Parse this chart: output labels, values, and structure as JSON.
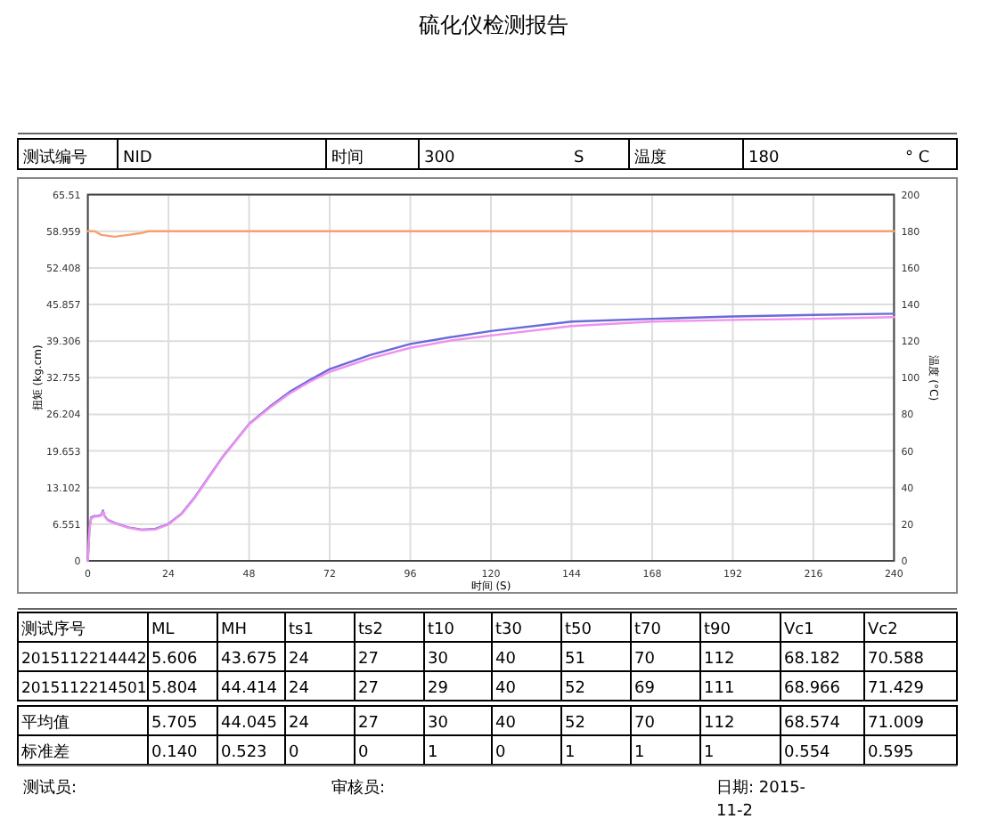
{
  "chart_data": [
    {
      "type": "other",
      "title": "硫化仪检测报告",
      "annotations": [
        "测试编号",
        "NID",
        "时间",
        "300",
        "S",
        "温度",
        "180",
        "° C"
      ]
    },
    {
      "type": "line",
      "xlabel": "时间 (S)",
      "ylabel": "扭矩 (kg.cm)",
      "y2label": "温度 (°C)",
      "xlim": [
        0,
        240
      ],
      "xticks": [
        0,
        24,
        48,
        72,
        96,
        120,
        144,
        168,
        192,
        216,
        240
      ],
      "ylim": [
        0,
        65.51
      ],
      "yticks": [
        0,
        6.551,
        13.102,
        19.653,
        26.204,
        32.755,
        39.306,
        45.857,
        52.408,
        58.959,
        65.51
      ],
      "y2lim": [
        0,
        200
      ],
      "y2ticks": [
        0,
        20,
        40,
        60,
        80,
        100,
        120,
        140,
        160,
        180,
        200
      ],
      "grid": true,
      "marker": "none",
      "line_style": "solid",
      "series": [
        {
          "color": "#6a6ad8",
          "x": [
            0,
            0.5,
            1,
            2,
            3,
            4,
            4.5,
            5,
            6,
            8,
            12,
            16,
            20,
            24,
            28,
            32,
            36,
            40,
            44,
            48,
            54,
            60,
            66,
            72,
            84,
            96,
            108,
            120,
            144,
            168,
            192,
            216,
            240
          ],
          "values": [
            0,
            6,
            7.8,
            8,
            8,
            8.2,
            9,
            8,
            7.3,
            6.8,
            6,
            5.6,
            5.7,
            6.6,
            8.5,
            11.5,
            15,
            18.5,
            21.5,
            24.5,
            27.5,
            30.2,
            32.3,
            34.3,
            36.8,
            38.8,
            40,
            41.1,
            42.8,
            43.3,
            43.7,
            44,
            44.2
          ]
        },
        {
          "color": "#f090f0",
          "x": [
            0,
            0.5,
            1,
            2,
            3,
            4,
            4.5,
            5,
            6,
            8,
            12,
            16,
            20,
            24,
            28,
            32,
            36,
            40,
            44,
            48,
            54,
            60,
            66,
            72,
            84,
            96,
            108,
            120,
            144,
            168,
            192,
            216,
            240
          ],
          "values": [
            0,
            5.8,
            7.6,
            7.9,
            7.9,
            8.1,
            8.8,
            7.9,
            7.2,
            6.7,
            5.9,
            5.5,
            5.6,
            6.5,
            8.4,
            11.4,
            14.9,
            18.4,
            21.4,
            24.4,
            27.3,
            29.9,
            32,
            33.8,
            36.2,
            38.1,
            39.4,
            40.3,
            42,
            42.8,
            43.1,
            43.3,
            43.6
          ]
        },
        {
          "color": "#f8a070",
          "axis": "y2",
          "x": [
            0,
            2,
            4,
            8,
            12,
            16,
            18,
            240
          ],
          "values": [
            180,
            180,
            178,
            177,
            178,
            179,
            180,
            180
          ]
        }
      ]
    },
    {
      "type": "other",
      "annotations": [
        "测试序号",
        "ML",
        "MH",
        "ts1",
        "ts2",
        "t10",
        "t30",
        "t50",
        "t70",
        "t90",
        "Vc1",
        "Vc2",
        "2015112214442",
        "5.606",
        "43.675",
        "24",
        "27",
        "30",
        "40",
        "51",
        "70",
        "112",
        "68.182",
        "70.588",
        "2015112214501",
        "5.804",
        "44.414",
        "24",
        "27",
        "29",
        "40",
        "52",
        "69",
        "111",
        "68.966",
        "71.429",
        "平均值",
        "5.705",
        "44.045",
        "24",
        "27",
        "30",
        "40",
        "52",
        "70",
        "112",
        "68.574",
        "71.009",
        "标准差",
        "0.140",
        "0.523",
        "0",
        "0",
        "1",
        "0",
        "1",
        "1",
        "1",
        "0.554",
        "0.595"
      ]
    },
    {
      "type": "other",
      "annotations": [
        "测试员:",
        "审核员:",
        "日期: 2015-11-2"
      ]
    }
  ]
}
